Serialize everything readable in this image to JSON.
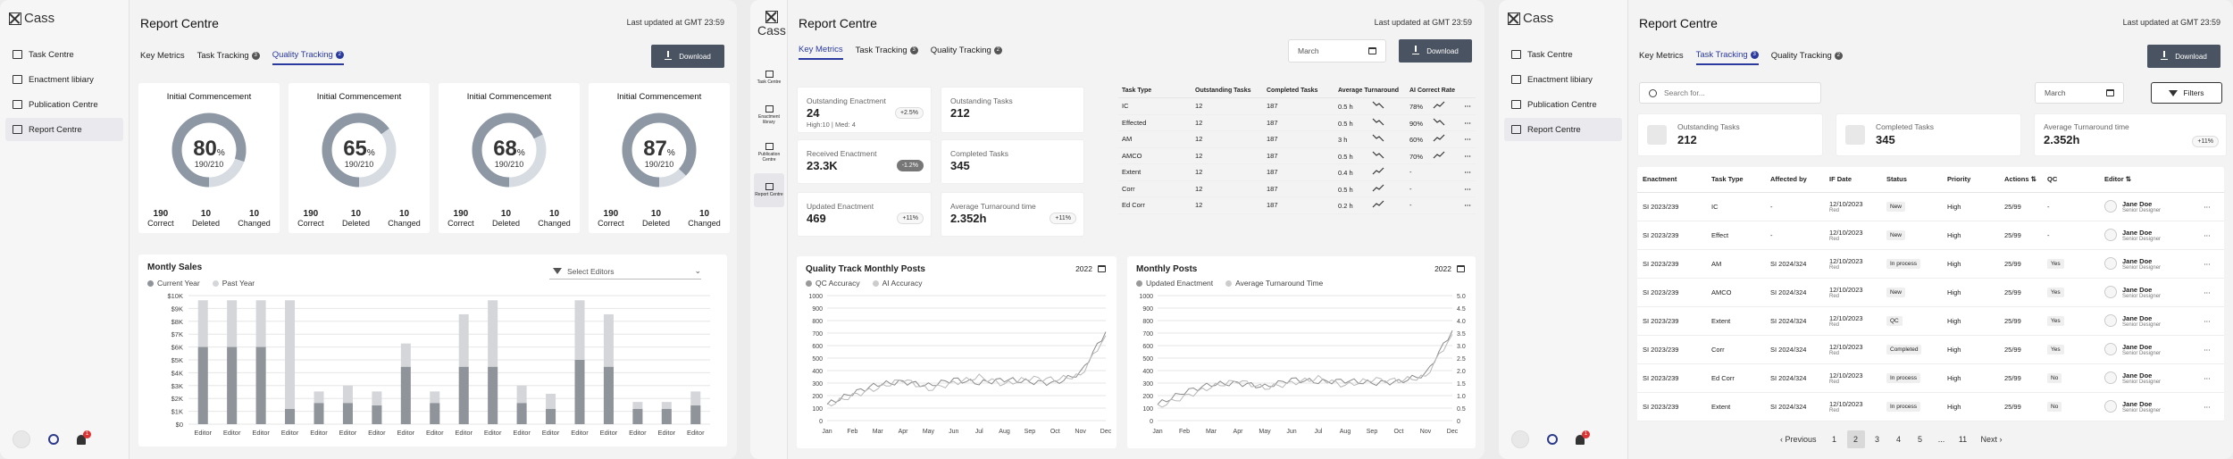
{
  "brand": "Cass",
  "nav": [
    "Task Centre",
    "Enactment libiary",
    "Publication Centre",
    "Report Centre"
  ],
  "nav_narrow": [
    "Task Centre",
    "Enactment library",
    "Publication Centre",
    "Report Centre"
  ],
  "notif_count": "1",
  "page_title": "Report Centre",
  "last_updated": "Last updated at GMT 23:59",
  "tabs": {
    "key": "Key Metrics",
    "task": "Task Tracking",
    "quality": "Quality Tracking",
    "task_count": "3",
    "quality_count": "2"
  },
  "download": "Download",
  "gauges": [
    {
      "title": "Initial Commencement",
      "value": "80",
      "fraction": 0.8,
      "sub": "190/210",
      "correct": "190",
      "deleted": "10",
      "changed": "10"
    },
    {
      "title": "Initial Commencement",
      "value": "65",
      "fraction": 0.65,
      "sub": "190/210",
      "correct": "190",
      "deleted": "10",
      "changed": "10"
    },
    {
      "title": "Initial Commencement",
      "value": "68",
      "fraction": 0.68,
      "sub": "190/210",
      "correct": "190",
      "deleted": "10",
      "changed": "10"
    },
    {
      "title": "Initial Commencement",
      "value": "87",
      "fraction": 0.87,
      "sub": "190/210",
      "correct": "190",
      "deleted": "10",
      "changed": "10"
    }
  ],
  "gauge_labels": {
    "correct": "Correct",
    "deleted": "Deleted",
    "changed": "Changed",
    "pct": "%"
  },
  "sales": {
    "title": "Montly Sales",
    "legend_current": "Current Year",
    "legend_past": "Past Year",
    "select": "Select Editors"
  },
  "chart_data": [
    {
      "type": "bar",
      "title": "Montly Sales",
      "categories": [
        "Editor",
        "Editor",
        "Editor",
        "Editor",
        "Editor",
        "Editor",
        "Editor",
        "Editor",
        "Editor",
        "Editor",
        "Editor",
        "Editor",
        "Editor",
        "Editor",
        "Editor",
        "Editor",
        "Editor",
        "Editor"
      ],
      "yticks": [
        "$10K",
        "$9K",
        "$8K",
        "$7K",
        "$6K",
        "$5K",
        "$4K",
        "$3K",
        "$2K",
        "$1K",
        "$0"
      ],
      "ylim": [
        0,
        11
      ],
      "series": [
        {
          "name": "Current Year",
          "values": [
            6.6,
            6.6,
            6.6,
            1.3,
            1.8,
            1.8,
            1.6,
            4.9,
            1.8,
            4.9,
            4.9,
            1.8,
            1.3,
            5.5,
            4.9,
            1.3,
            1.3,
            1.6
          ]
        },
        {
          "name": "Past Year",
          "values": [
            10.6,
            10.6,
            10.6,
            10.6,
            2.8,
            3.3,
            2.8,
            6.9,
            2.8,
            9.4,
            10.6,
            3.3,
            2.6,
            10.6,
            9.4,
            1.9,
            1.9,
            2.8
          ]
        }
      ]
    },
    {
      "type": "line",
      "title": "Quality Track Monthly Posts",
      "categories": [
        "Jan",
        "Feb",
        "Mar",
        "Apr",
        "May",
        "Jun",
        "Jul",
        "Aug",
        "Sep",
        "Oct",
        "Nov",
        "Dec"
      ],
      "yticks": [
        "1000",
        "900",
        "800",
        "700",
        "600",
        "500",
        "400",
        "300",
        "200",
        "100",
        "0"
      ],
      "ylim": [
        0,
        1000
      ],
      "series": [
        {
          "name": "QC Accuracy",
          "values": [
            130,
            220,
            290,
            310,
            280,
            330,
            300,
            330,
            310,
            300,
            380,
            710
          ]
        },
        {
          "name": "AI Accuracy",
          "values": [
            120,
            200,
            260,
            330,
            250,
            300,
            350,
            290,
            340,
            330,
            360,
            680
          ]
        }
      ]
    },
    {
      "type": "line",
      "title": "Monthly Posts",
      "categories": [
        "Jan",
        "Feb",
        "Mar",
        "Apr",
        "May",
        "Jun",
        "Jul",
        "Aug",
        "Sep",
        "Oct",
        "Nov",
        "Dec"
      ],
      "yticks": [
        "1000",
        "900",
        "800",
        "700",
        "600",
        "500",
        "400",
        "300",
        "200",
        "100",
        "0"
      ],
      "y2ticks": [
        "5.0",
        "4.5",
        "4.0",
        "3.5",
        "3.0",
        "2.5",
        "2.0",
        "1.5",
        "1.0",
        "0.5",
        "0"
      ],
      "ylim": [
        0,
        1000
      ],
      "series": [
        {
          "name": "Updated Enactment",
          "values": [
            130,
            230,
            290,
            300,
            270,
            330,
            310,
            320,
            300,
            310,
            370,
            720
          ]
        },
        {
          "name": "Average Turnaround Time",
          "values": [
            110,
            190,
            270,
            320,
            260,
            300,
            340,
            280,
            330,
            320,
            350,
            690
          ]
        }
      ]
    }
  ],
  "km": {
    "month": "March",
    "stats": [
      {
        "label": "Outstanding Enactment",
        "value": "24",
        "sub": "High:10 | Med: 4",
        "pill": "+2.5%",
        "neg": false
      },
      {
        "label": "Outstanding Tasks",
        "value": "212",
        "sub": "",
        "pill": "",
        "neg": false
      },
      {
        "label": "Received Enactment",
        "value": "23.3K",
        "sub": "",
        "pill": "-1.2%",
        "neg": true
      },
      {
        "label": "Completed Tasks",
        "value": "345",
        "sub": "",
        "pill": "",
        "neg": false
      },
      {
        "label": "Updated Enactment",
        "value": "469",
        "sub": "",
        "pill": "+11%",
        "neg": false
      },
      {
        "label": "Average Turnaround time",
        "value": "2.352h",
        "sub": "",
        "pill": "+11%",
        "neg": false
      }
    ],
    "tt_headers": [
      "Task Type",
      "Outstanding Tasks",
      "Completed Tasks",
      "Average Turnaround",
      "AI Correct Rate"
    ],
    "tt_rows": [
      {
        "type": "IC",
        "out": "12",
        "comp": "187",
        "avg": "0.5 h",
        "trend": "down",
        "rate": "78%",
        "rtrend": "up"
      },
      {
        "type": "Effected",
        "out": "12",
        "comp": "187",
        "avg": "0.5 h",
        "trend": "down",
        "rate": "90%",
        "rtrend": "down"
      },
      {
        "type": "AM",
        "out": "12",
        "comp": "187",
        "avg": "3 h",
        "trend": "down",
        "rate": "60%",
        "rtrend": "up"
      },
      {
        "type": "AMCO",
        "out": "12",
        "comp": "187",
        "avg": "0.5 h",
        "trend": "down",
        "rate": "70%",
        "rtrend": "up"
      },
      {
        "type": "Extent",
        "out": "12",
        "comp": "187",
        "avg": "0.4 h",
        "trend": "up",
        "rate": "-",
        "rtrend": ""
      },
      {
        "type": "Corr",
        "out": "12",
        "comp": "187",
        "avg": "0.5 h",
        "trend": "up",
        "rate": "-",
        "rtrend": ""
      },
      {
        "type": "Ed Corr",
        "out": "12",
        "comp": "187",
        "avg": "0.2 h",
        "trend": "up",
        "rate": "-",
        "rtrend": ""
      }
    ],
    "qt_title": "Quality Track Monthly Posts",
    "qt_year": "2022",
    "qt_l1": "QC Accuracy",
    "qt_l2": "AI Accuracy",
    "mp_title": "Monthly Posts",
    "mp_year": "2022",
    "mp_l1": "Updated Enactment",
    "mp_l2": "Average Turnaround Time"
  },
  "tt": {
    "search_ph": "Search for...",
    "month": "March",
    "filters": "Filters",
    "stats": [
      {
        "label": "Outstanding Tasks",
        "value": "212"
      },
      {
        "label": "Completed Tasks",
        "value": "345"
      },
      {
        "label": "Average Turnaround time",
        "value": "2.352h",
        "pill": "+11%"
      }
    ],
    "headers": [
      "Enactment",
      "Task Type",
      "Affected by",
      "IF Date",
      "Status",
      "Priority",
      "Actions",
      "QC",
      "Editor"
    ],
    "rows": [
      {
        "en": "SI 2023/239",
        "type": "IC",
        "aff": "-",
        "date": "12/10/2023",
        "dsub": "Red",
        "status": "New",
        "pri": "High",
        "act": "25/99",
        "qc": "-",
        "ed": "Jane Doe",
        "role": "Senior Designer"
      },
      {
        "en": "SI 2023/239",
        "type": "Effect",
        "aff": "-",
        "date": "12/10/2023",
        "dsub": "Red",
        "status": "New",
        "pri": "High",
        "act": "25/99",
        "qc": "-",
        "ed": "Jane Doe",
        "role": "Senior Designer"
      },
      {
        "en": "SI 2023/239",
        "type": "AM",
        "aff": "SI 2024/324",
        "date": "12/10/2023",
        "dsub": "Red",
        "status": "In process",
        "pri": "High",
        "act": "25/99",
        "qc": "Yes",
        "ed": "Jane Doe",
        "role": "Senior Designer"
      },
      {
        "en": "SI 2023/239",
        "type": "AMCO",
        "aff": "SI 2024/324",
        "date": "12/10/2023",
        "dsub": "Red",
        "status": "New",
        "pri": "High",
        "act": "25/99",
        "qc": "Yes",
        "ed": "Jane Doe",
        "role": "Senior Designer"
      },
      {
        "en": "SI 2023/239",
        "type": "Extent",
        "aff": "SI 2024/324",
        "date": "12/10/2023",
        "dsub": "Red",
        "status": "QC",
        "pri": "High",
        "act": "25/99",
        "qc": "Yes",
        "ed": "Jane Doe",
        "role": "Senior Designer"
      },
      {
        "en": "SI 2023/239",
        "type": "Corr",
        "aff": "SI 2024/324",
        "date": "12/10/2023",
        "dsub": "Red",
        "status": "Completed",
        "pri": "High",
        "act": "25/99",
        "qc": "Yes",
        "ed": "Jane Doe",
        "role": "Senior Designer"
      },
      {
        "en": "SI 2023/239",
        "type": "Ed Corr",
        "aff": "SI 2024/324",
        "date": "12/10/2023",
        "dsub": "Red",
        "status": "In process",
        "pri": "High",
        "act": "25/99",
        "qc": "No",
        "ed": "Jane Doe",
        "role": "Senior Designer"
      },
      {
        "en": "SI 2023/239",
        "type": "Extent",
        "aff": "SI 2024/324",
        "date": "12/10/2023",
        "dsub": "Red",
        "status": "In process",
        "pri": "High",
        "act": "25/99",
        "qc": "No",
        "ed": "Jane Doe",
        "role": "Senior Designer"
      }
    ],
    "pagination": {
      "prev": "Previous",
      "next": "Next",
      "pages": [
        "1",
        "2",
        "3",
        "4",
        "5",
        "...",
        "11"
      ],
      "current": "2"
    }
  },
  "colors": {
    "accent": "#2a3a9e",
    "bar_current": "#8f939a",
    "bar_past": "#d4d6da",
    "gauge": "#8e98a4",
    "gauge_track": "#d7dce2"
  }
}
